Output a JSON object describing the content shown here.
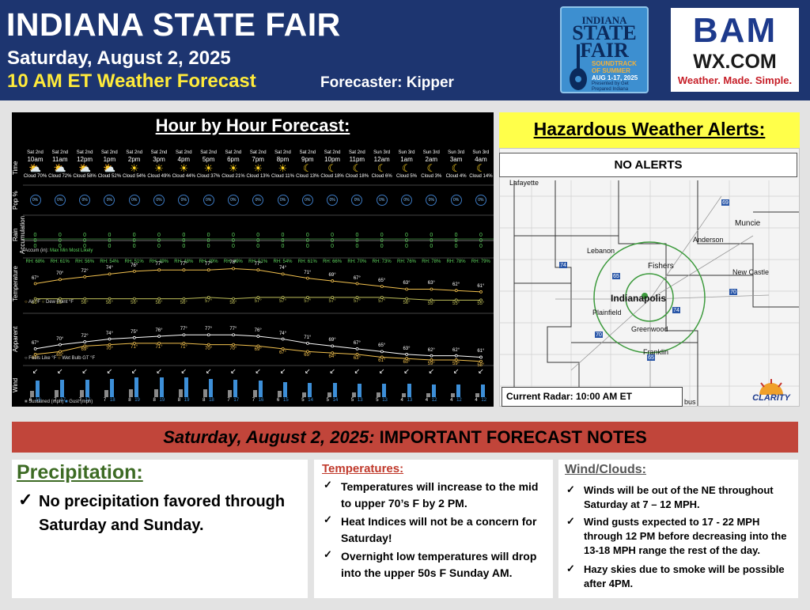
{
  "header": {
    "title": "INDIANA STATE FAIR",
    "date": "Saturday, August 2, 2025",
    "time_line": "10 AM ET Weather Forecast",
    "forecaster": "Forecaster: Kipper"
  },
  "fair_logo": {
    "line1": "INDIANA",
    "line2": "STATE FAIR",
    "line3": "SOUNDTRACK OF SUMMER",
    "dates": "AUG 1-17, 2025",
    "sponsor": "Presented by Get Prepared Indiana"
  },
  "bam_logo": {
    "line1": "BAM",
    "line2": "WX.COM",
    "line3": "Weather. Made. Simple."
  },
  "hourly": {
    "title": "Hour by Hour Forecast:",
    "row_labels": {
      "time": "Time",
      "pop": "Pop %",
      "rain": "Rain Accumulation",
      "temp": "Temperature",
      "apparent": "Apparent",
      "wind": "Wind"
    },
    "accum_legend": "Accum (in):",
    "accum_max": "Max",
    "accum_min": "Min",
    "accum_likely": "Most Likely",
    "temp_legend_air": "Air °F",
    "temp_legend_dew": "Dew Point °F",
    "apparent_legend_feels": "Feels Like °F",
    "apparent_legend_wb": "Wet Bulb GT °F",
    "wind_legend_sustained": "Sustained (mph)",
    "wind_legend_gust": "Gust (mph)",
    "hours": [
      {
        "day": "Sat 2nd",
        "hour": "10am",
        "icon": "sun-cloud-icon",
        "cloud": "Cloud 70%",
        "pop": "0%",
        "rain": "0",
        "rh": "RH: 68%",
        "temp": "67°",
        "dew": "56°",
        "feels": "67°",
        "wbgt": "63°",
        "dir": "↙",
        "sust": 6,
        "gust": 16
      },
      {
        "day": "Sat 2nd",
        "hour": "11am",
        "icon": "sun-cloud-icon",
        "cloud": "Cloud 72%",
        "pop": "0%",
        "rain": "0",
        "rh": "RH: 61%",
        "temp": "70°",
        "dew": "56°",
        "feels": "70°",
        "wbgt": "65°",
        "dir": "↙",
        "sust": 7,
        "gust": 17
      },
      {
        "day": "Sat 2nd",
        "hour": "12pm",
        "icon": "sun-cloud-icon",
        "cloud": "Cloud 58%",
        "pop": "0%",
        "rain": "0",
        "rh": "RH: 56%",
        "temp": "72°",
        "dew": "56°",
        "feels": "72°",
        "wbgt": "69°",
        "dir": "↙",
        "sust": 7,
        "gust": 17
      },
      {
        "day": "Sat 2nd",
        "hour": "1pm",
        "icon": "sun-cloud-icon",
        "cloud": "Cloud 52%",
        "pop": "0%",
        "rain": "0",
        "rh": "RH: 54%",
        "temp": "74°",
        "dew": "56°",
        "feels": "74°",
        "wbgt": "70°",
        "dir": "↙",
        "sust": 7,
        "gust": 18
      },
      {
        "day": "Sat 2nd",
        "hour": "2pm",
        "icon": "sun-icon",
        "cloud": "Cloud 54%",
        "pop": "0%",
        "rain": "0",
        "rh": "RH: 51%",
        "temp": "76°",
        "dew": "56°",
        "feels": "75°",
        "wbgt": "71°",
        "dir": "↙",
        "sust": 8,
        "gust": 19
      },
      {
        "day": "Sat 2nd",
        "hour": "3pm",
        "icon": "sun-icon",
        "cloud": "Cloud 49%",
        "pop": "0%",
        "rain": "0",
        "rh": "RH: 49%",
        "temp": "77°",
        "dew": "56°",
        "feels": "76°",
        "wbgt": "71°",
        "dir": "↙",
        "sust": 8,
        "gust": 19
      },
      {
        "day": "Sat 2nd",
        "hour": "4pm",
        "icon": "sun-icon",
        "cloud": "Cloud 44%",
        "pop": "0%",
        "rain": "0",
        "rh": "RH: 48%",
        "temp": "77°",
        "dew": "56°",
        "feels": "77°",
        "wbgt": "71°",
        "dir": "↙",
        "sust": 8,
        "gust": 19
      },
      {
        "day": "Sat 2nd",
        "hour": "5pm",
        "icon": "sun-icon",
        "cloud": "Cloud 37%",
        "pop": "0%",
        "rain": "0",
        "rh": "RH: 49%",
        "temp": "77°",
        "dew": "57°",
        "feels": "77°",
        "wbgt": "70°",
        "dir": "↙",
        "sust": 8,
        "gust": 18
      },
      {
        "day": "Sat 2nd",
        "hour": "6pm",
        "icon": "sun-icon",
        "cloud": "Cloud 21%",
        "pop": "0%",
        "rain": "0",
        "rh": "RH: 49%",
        "temp": "78°",
        "dew": "56°",
        "feels": "77°",
        "wbgt": "70°",
        "dir": "↙",
        "sust": 7,
        "gust": 17
      },
      {
        "day": "Sat 2nd",
        "hour": "7pm",
        "icon": "sun-icon",
        "cloud": "Cloud 13%",
        "pop": "0%",
        "rain": "0",
        "rh": "RH: 51%",
        "temp": "77°",
        "dew": "57°",
        "feels": "76°",
        "wbgt": "69°",
        "dir": "↙",
        "sust": 7,
        "gust": 16
      },
      {
        "day": "Sat 2nd",
        "hour": "8pm",
        "icon": "sun-icon",
        "cloud": "Cloud 11%",
        "pop": "0%",
        "rain": "0",
        "rh": "RH: 54%",
        "temp": "74°",
        "dew": "57°",
        "feels": "74°",
        "wbgt": "67°",
        "dir": "↙",
        "sust": 6,
        "gust": 15
      },
      {
        "day": "Sat 2nd",
        "hour": "9pm",
        "icon": "moon-icon",
        "cloud": "Cloud 13%",
        "pop": "0%",
        "rain": "0",
        "rh": "RH: 61%",
        "temp": "71°",
        "dew": "57°",
        "feels": "71°",
        "wbgt": "65°",
        "dir": "↙",
        "sust": 5,
        "gust": 14
      },
      {
        "day": "Sat 2nd",
        "hour": "10pm",
        "icon": "moon-cloud-icon",
        "cloud": "Cloud 18%",
        "pop": "0%",
        "rain": "0",
        "rh": "RH: 66%",
        "temp": "69°",
        "dew": "57°",
        "feels": "69°",
        "wbgt": "64°",
        "dir": "↙",
        "sust": 5,
        "gust": 14
      },
      {
        "day": "Sat 2nd",
        "hour": "11pm",
        "icon": "moon-cloud-icon",
        "cloud": "Cloud 18%",
        "pop": "0%",
        "rain": "0",
        "rh": "RH: 70%",
        "temp": "67°",
        "dew": "57°",
        "feels": "67°",
        "wbgt": "63°",
        "dir": "↙",
        "sust": 5,
        "gust": 13
      },
      {
        "day": "Sun 3rd",
        "hour": "12am",
        "icon": "moon-icon",
        "cloud": "Cloud 6%",
        "pop": "0%",
        "rain": "0",
        "rh": "RH: 73%",
        "temp": "65°",
        "dew": "57°",
        "feels": "65°",
        "wbgt": "61°",
        "dir": "↙",
        "sust": 5,
        "gust": 13
      },
      {
        "day": "Sun 3rd",
        "hour": "1am",
        "icon": "moon-icon",
        "cloud": "Cloud 5%",
        "pop": "0%",
        "rain": "0",
        "rh": "RH: 76%",
        "temp": "63°",
        "dew": "56°",
        "feels": "63°",
        "wbgt": "60°",
        "dir": "↙",
        "sust": 4,
        "gust": 13
      },
      {
        "day": "Sun 3rd",
        "hour": "2am",
        "icon": "moon-icon",
        "cloud": "Cloud 3%",
        "pop": "0%",
        "rain": "0",
        "rh": "RH: 78%",
        "temp": "63°",
        "dew": "55°",
        "feels": "62°",
        "wbgt": "59°",
        "dir": "↙",
        "sust": 4,
        "gust": 12
      },
      {
        "day": "Sun 3rd",
        "hour": "3am",
        "icon": "moon-icon",
        "cloud": "Cloud 4%",
        "pop": "0%",
        "rain": "0",
        "rh": "RH: 78%",
        "temp": "62°",
        "dew": "55°",
        "feels": "62°",
        "wbgt": "59°",
        "dir": "↙",
        "sust": 4,
        "gust": 12
      },
      {
        "day": "Sun 3rd",
        "hour": "4am",
        "icon": "moon-icon",
        "cloud": "Cloud 14%",
        "pop": "0%",
        "rain": "0",
        "rh": "RH: 79%",
        "temp": "61°",
        "dew": "55°",
        "feels": "61°",
        "wbgt": "58°",
        "dir": "↙",
        "sust": 4,
        "gust": 12
      }
    ]
  },
  "alerts": {
    "title": "Hazardous Weather Alerts:",
    "status": "NO ALERTS",
    "radar_caption": "Current Radar: 10:00 AM ET",
    "map_labels": [
      "Lafayette",
      "Lebanon",
      "Fishers",
      "Anderson",
      "Muncie",
      "New Castle",
      "Indianapolis",
      "Plainfield",
      "Greenwood",
      "Franklin",
      "bus"
    ],
    "highway_shields": [
      "69",
      "74",
      "65",
      "70",
      "70",
      "74",
      "65"
    ],
    "clarity_logo": "CLARITY"
  },
  "notes": {
    "banner_italic": "Saturday, August 2, 2025:",
    "banner_rest": " IMPORTANT FORECAST NOTES",
    "precip": {
      "heading": "Precipitation:",
      "bullets": [
        "No precipitation favored through Saturday and Sunday."
      ]
    },
    "temps": {
      "heading": "Temperatures:",
      "bullets": [
        "Temperatures will increase to the mid to upper 70’s F by 2 PM.",
        "Heat Indices will not be a concern for Saturday!",
        "Overnight low temperatures will drop into the upper 50s F Sunday AM."
      ]
    },
    "wind": {
      "heading": "Wind/Clouds:",
      "bullets": [
        "Winds will be out of the NE throughout Saturday at 7 – 12 MPH.",
        "Wind gusts expected to 17 - 22 MPH through 12 PM before decreasing into the 13-18 MPH range the rest of the day.",
        "Hazy skies due to smoke will be possible after 4PM."
      ]
    },
    "check_glyph": "✓"
  },
  "colors": {
    "header_bg": "#1d3570",
    "alert_yellow": "#ffff4a",
    "banner_red": "#c1453a",
    "precip_green": "#3d6b24",
    "temp_red": "#c0392b",
    "gust_blue": "#3d8fd8"
  }
}
